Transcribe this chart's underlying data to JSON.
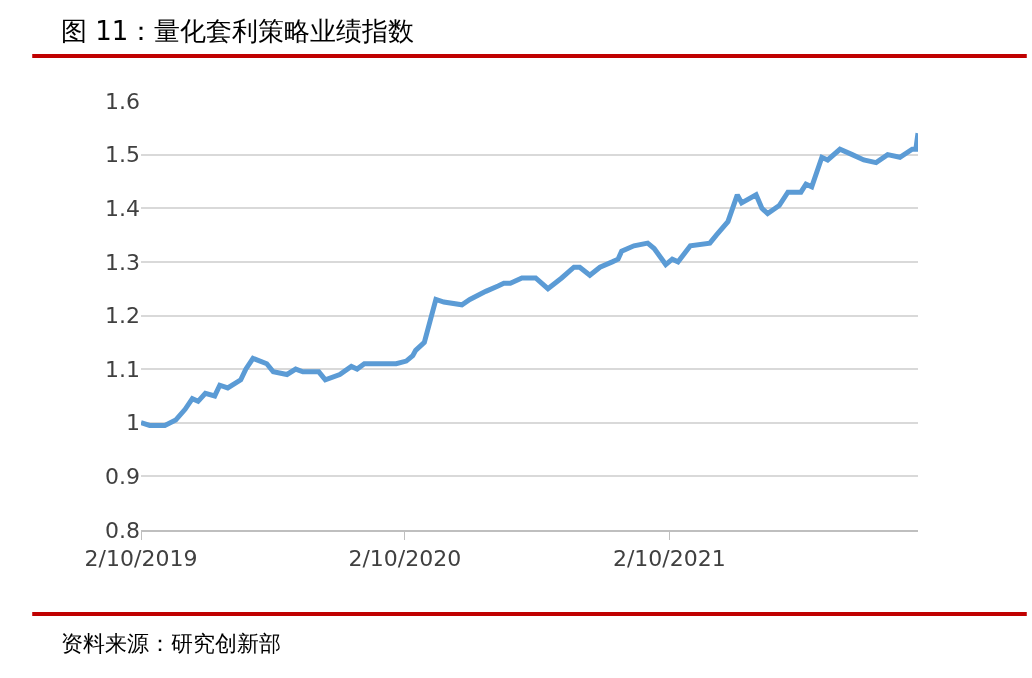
{
  "chart_data": {
    "type": "line",
    "title": "图 11：量化套利策略业绩指数",
    "annotations": [
      "资料来源：研究创新部"
    ],
    "x": [
      "2019-02-10",
      "2019-02-22",
      "2019-03-15",
      "2019-03-30",
      "2019-04-12",
      "2019-04-22",
      "2019-04-30",
      "2019-05-10",
      "2019-05-23",
      "2019-05-30",
      "2019-06-10",
      "2019-06-28",
      "2019-07-05",
      "2019-07-15",
      "2019-08-03",
      "2019-08-12",
      "2019-08-31",
      "2019-09-12",
      "2019-09-22",
      "2019-10-14",
      "2019-10-23",
      "2019-11-12",
      "2019-11-28",
      "2019-12-06",
      "2019-12-16",
      "2020-01-04",
      "2020-01-29",
      "2020-02-12",
      "2020-02-21",
      "2020-02-25",
      "2020-03-08",
      "2020-03-16",
      "2020-03-24",
      "2020-04-04",
      "2020-04-29",
      "2020-05-10",
      "2020-06-01",
      "2020-06-18",
      "2020-06-26",
      "2020-07-05",
      "2020-07-21",
      "2020-08-09",
      "2020-08-26",
      "2020-09-14",
      "2020-10-01",
      "2020-10-09",
      "2020-10-23",
      "2020-11-06",
      "2020-11-23",
      "2020-12-01",
      "2020-12-06",
      "2020-12-23",
      "2021-01-11",
      "2021-01-20",
      "2021-02-05",
      "2021-02-14",
      "2021-02-22",
      "2021-03-11",
      "2021-04-07",
      "2021-04-16",
      "2021-05-02",
      "2021-05-15",
      "2021-05-21",
      "2021-06-10",
      "2021-06-18",
      "2021-06-26",
      "2021-07-12",
      "2021-07-24",
      "2021-08-11",
      "2021-08-18",
      "2021-08-26",
      "2021-09-09",
      "2021-09-17",
      "2021-10-04",
      "2021-10-21",
      "2021-11-06",
      "2021-11-23",
      "2021-12-09",
      "2021-12-26",
      "2022-01-12",
      "2022-01-17",
      "2022-01-20"
    ],
    "series": [
      {
        "color": "#5b9bd5",
        "values": [
          1.0,
          0.995,
          0.995,
          1.005,
          1.025,
          1.045,
          1.04,
          1.055,
          1.05,
          1.07,
          1.065,
          1.08,
          1.1,
          1.12,
          1.11,
          1.095,
          1.09,
          1.1,
          1.095,
          1.095,
          1.08,
          1.09,
          1.105,
          1.1,
          1.11,
          1.11,
          1.11,
          1.115,
          1.125,
          1.135,
          1.15,
          1.19,
          1.23,
          1.225,
          1.22,
          1.23,
          1.245,
          1.255,
          1.26,
          1.26,
          1.27,
          1.27,
          1.25,
          1.27,
          1.29,
          1.29,
          1.275,
          1.29,
          1.3,
          1.305,
          1.32,
          1.33,
          1.335,
          1.325,
          1.295,
          1.305,
          1.3,
          1.33,
          1.335,
          1.35,
          1.375,
          1.425,
          1.41,
          1.425,
          1.4,
          1.39,
          1.405,
          1.43,
          1.43,
          1.445,
          1.44,
          1.495,
          1.49,
          1.51,
          1.5,
          1.49,
          1.485,
          1.5,
          1.495,
          1.51,
          1.51,
          1.54
        ]
      }
    ],
    "xlim": [
      "2019-02-10",
      "2022-01-20"
    ],
    "xticks": [
      {
        "value": "2019-02-10",
        "label": "2/10/2019"
      },
      {
        "value": "2020-02-10",
        "label": "2/10/2020"
      },
      {
        "value": "2021-02-10",
        "label": "2/10/2021"
      }
    ],
    "ylim": [
      0.8,
      1.6
    ],
    "yticks": [
      0.8,
      0.9,
      1,
      1.1,
      1.2,
      1.3,
      1.4,
      1.5,
      1.6
    ],
    "grid": "y",
    "marker": "none",
    "line_style": "solid"
  }
}
